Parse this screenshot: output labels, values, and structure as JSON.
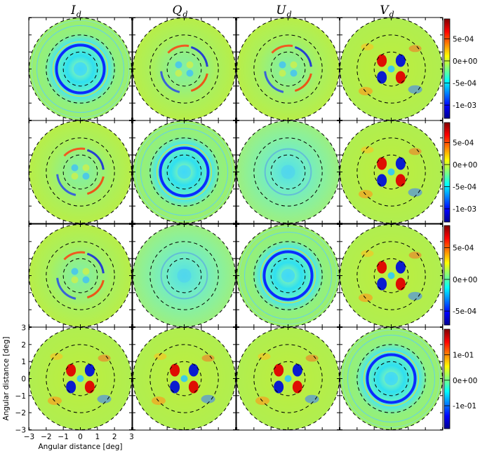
{
  "chart_data": {
    "type": "heatmap",
    "description_type": "image-grid",
    "columns": [
      {
        "symbol": "I",
        "subscript": "d"
      },
      {
        "symbol": "Q",
        "subscript": "d"
      },
      {
        "symbol": "U",
        "subscript": "d"
      },
      {
        "symbol": "V",
        "subscript": "d"
      }
    ],
    "xlabel": "Angular distance [deg]",
    "ylabel": "Angular distance [deg]",
    "xlim": [
      -3,
      3
    ],
    "ylim": [
      -3,
      3
    ],
    "x_ticks": [
      "−3",
      "−2",
      "−1",
      "0",
      "1",
      "2",
      "3"
    ],
    "y_ticks": [
      "3",
      "2",
      "1",
      "0",
      "−1",
      "−2",
      "−3"
    ],
    "dashed_circle_radii_deg": [
      1,
      2,
      3
    ],
    "colormap": "jet",
    "colorbars": [
      {
        "row": 1,
        "ticks": [
          "5e-04",
          "0e+00",
          "-5e-04",
          "-1e-03"
        ],
        "range": [
          -0.0013,
          0.00095
        ]
      },
      {
        "row": 2,
        "ticks": [
          "5e-04",
          "0e+00",
          "-5e-04",
          "-1e-03"
        ],
        "range": [
          -0.0013,
          0.00095
        ]
      },
      {
        "row": 3,
        "ticks": [
          "5e-04",
          "0e+00",
          "-5e-04"
        ],
        "range": [
          -0.00072,
          0.00085
        ]
      },
      {
        "row": 4,
        "ticks": [
          "1e-01",
          "0e+00",
          "-1e-01"
        ],
        "range": [
          -0.19,
          0.2
        ]
      }
    ],
    "panels": [
      {
        "row": 1,
        "col": 1,
        "pattern": "ring"
      },
      {
        "row": 1,
        "col": 2,
        "pattern": "quad-weak"
      },
      {
        "row": 1,
        "col": 3,
        "pattern": "quad-weak"
      },
      {
        "row": 1,
        "col": 4,
        "pattern": "quad-strong"
      },
      {
        "row": 2,
        "col": 1,
        "pattern": "quad-weak"
      },
      {
        "row": 2,
        "col": 2,
        "pattern": "ring"
      },
      {
        "row": 2,
        "col": 3,
        "pattern": "faint"
      },
      {
        "row": 2,
        "col": 4,
        "pattern": "quad-strong"
      },
      {
        "row": 3,
        "col": 1,
        "pattern": "quad-weak"
      },
      {
        "row": 3,
        "col": 2,
        "pattern": "faint"
      },
      {
        "row": 3,
        "col": 3,
        "pattern": "ring"
      },
      {
        "row": 3,
        "col": 4,
        "pattern": "quad-strong"
      },
      {
        "row": 4,
        "col": 1,
        "pattern": "quad-strong"
      },
      {
        "row": 4,
        "col": 2,
        "pattern": "quad-strong"
      },
      {
        "row": 4,
        "col": 3,
        "pattern": "quad-strong"
      },
      {
        "row": 4,
        "col": 4,
        "pattern": "ring"
      }
    ]
  },
  "colors": {
    "background_field": "#b8ef44",
    "ring_blue": "#0a2cff",
    "quad_red": "#e00000",
    "quad_blue": "#0010d8",
    "center_cyan": "#40d8f8"
  }
}
